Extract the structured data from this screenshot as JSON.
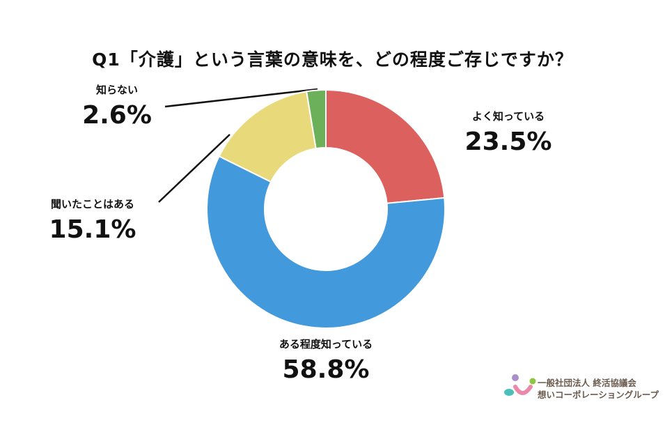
{
  "chart_data": {
    "type": "pie",
    "donut": true,
    "title": "Q1「介護」という言葉の意味を、どの程度ご存じですか？",
    "slices": [
      {
        "label": "よく知っている",
        "value": 23.5,
        "display": "23.5%",
        "color": "#DB605E"
      },
      {
        "label": "ある程度知っている",
        "value": 58.8,
        "display": "58.8%",
        "color": "#4299DC"
      },
      {
        "label": "聞いたことはある",
        "value": 15.1,
        "display": "15.1%",
        "color": "#E8D97A"
      },
      {
        "label": "知らない",
        "value": 2.6,
        "display": "2.6%",
        "color": "#6DB05A"
      }
    ],
    "start": "top",
    "direction": "clockwise"
  },
  "logo": {
    "line1": "一般社団法人 終活協議会",
    "line2": "想いコーポレーショングループ"
  }
}
